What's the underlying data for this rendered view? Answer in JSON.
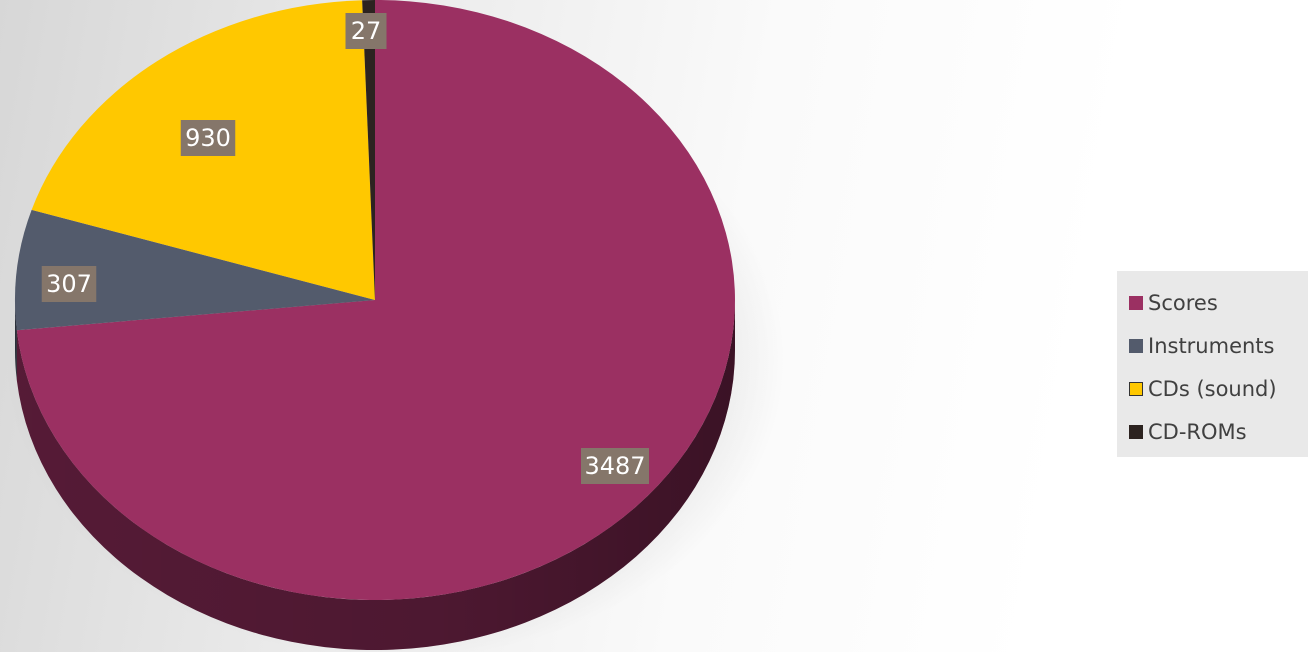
{
  "chart_data": {
    "type": "pie",
    "style": "3d",
    "categories": [
      "Scores",
      "Instruments",
      "CDs (sound)",
      "CD-ROMs"
    ],
    "values": [
      3487,
      307,
      930,
      27
    ],
    "colors": [
      "#9b3062",
      "#535b6c",
      "#ffc800",
      "#2c2320"
    ],
    "side_colors": [
      "#5a1c39",
      "#2f3440",
      "#9a7800",
      "#1a1513"
    ],
    "data_labels": [
      "3487",
      "307",
      "930",
      "27"
    ],
    "label_background": "#85766a",
    "legend_position": "right",
    "legend": [
      "Scores",
      "Instruments",
      "CDs (sound)",
      "CD-ROMs"
    ]
  }
}
